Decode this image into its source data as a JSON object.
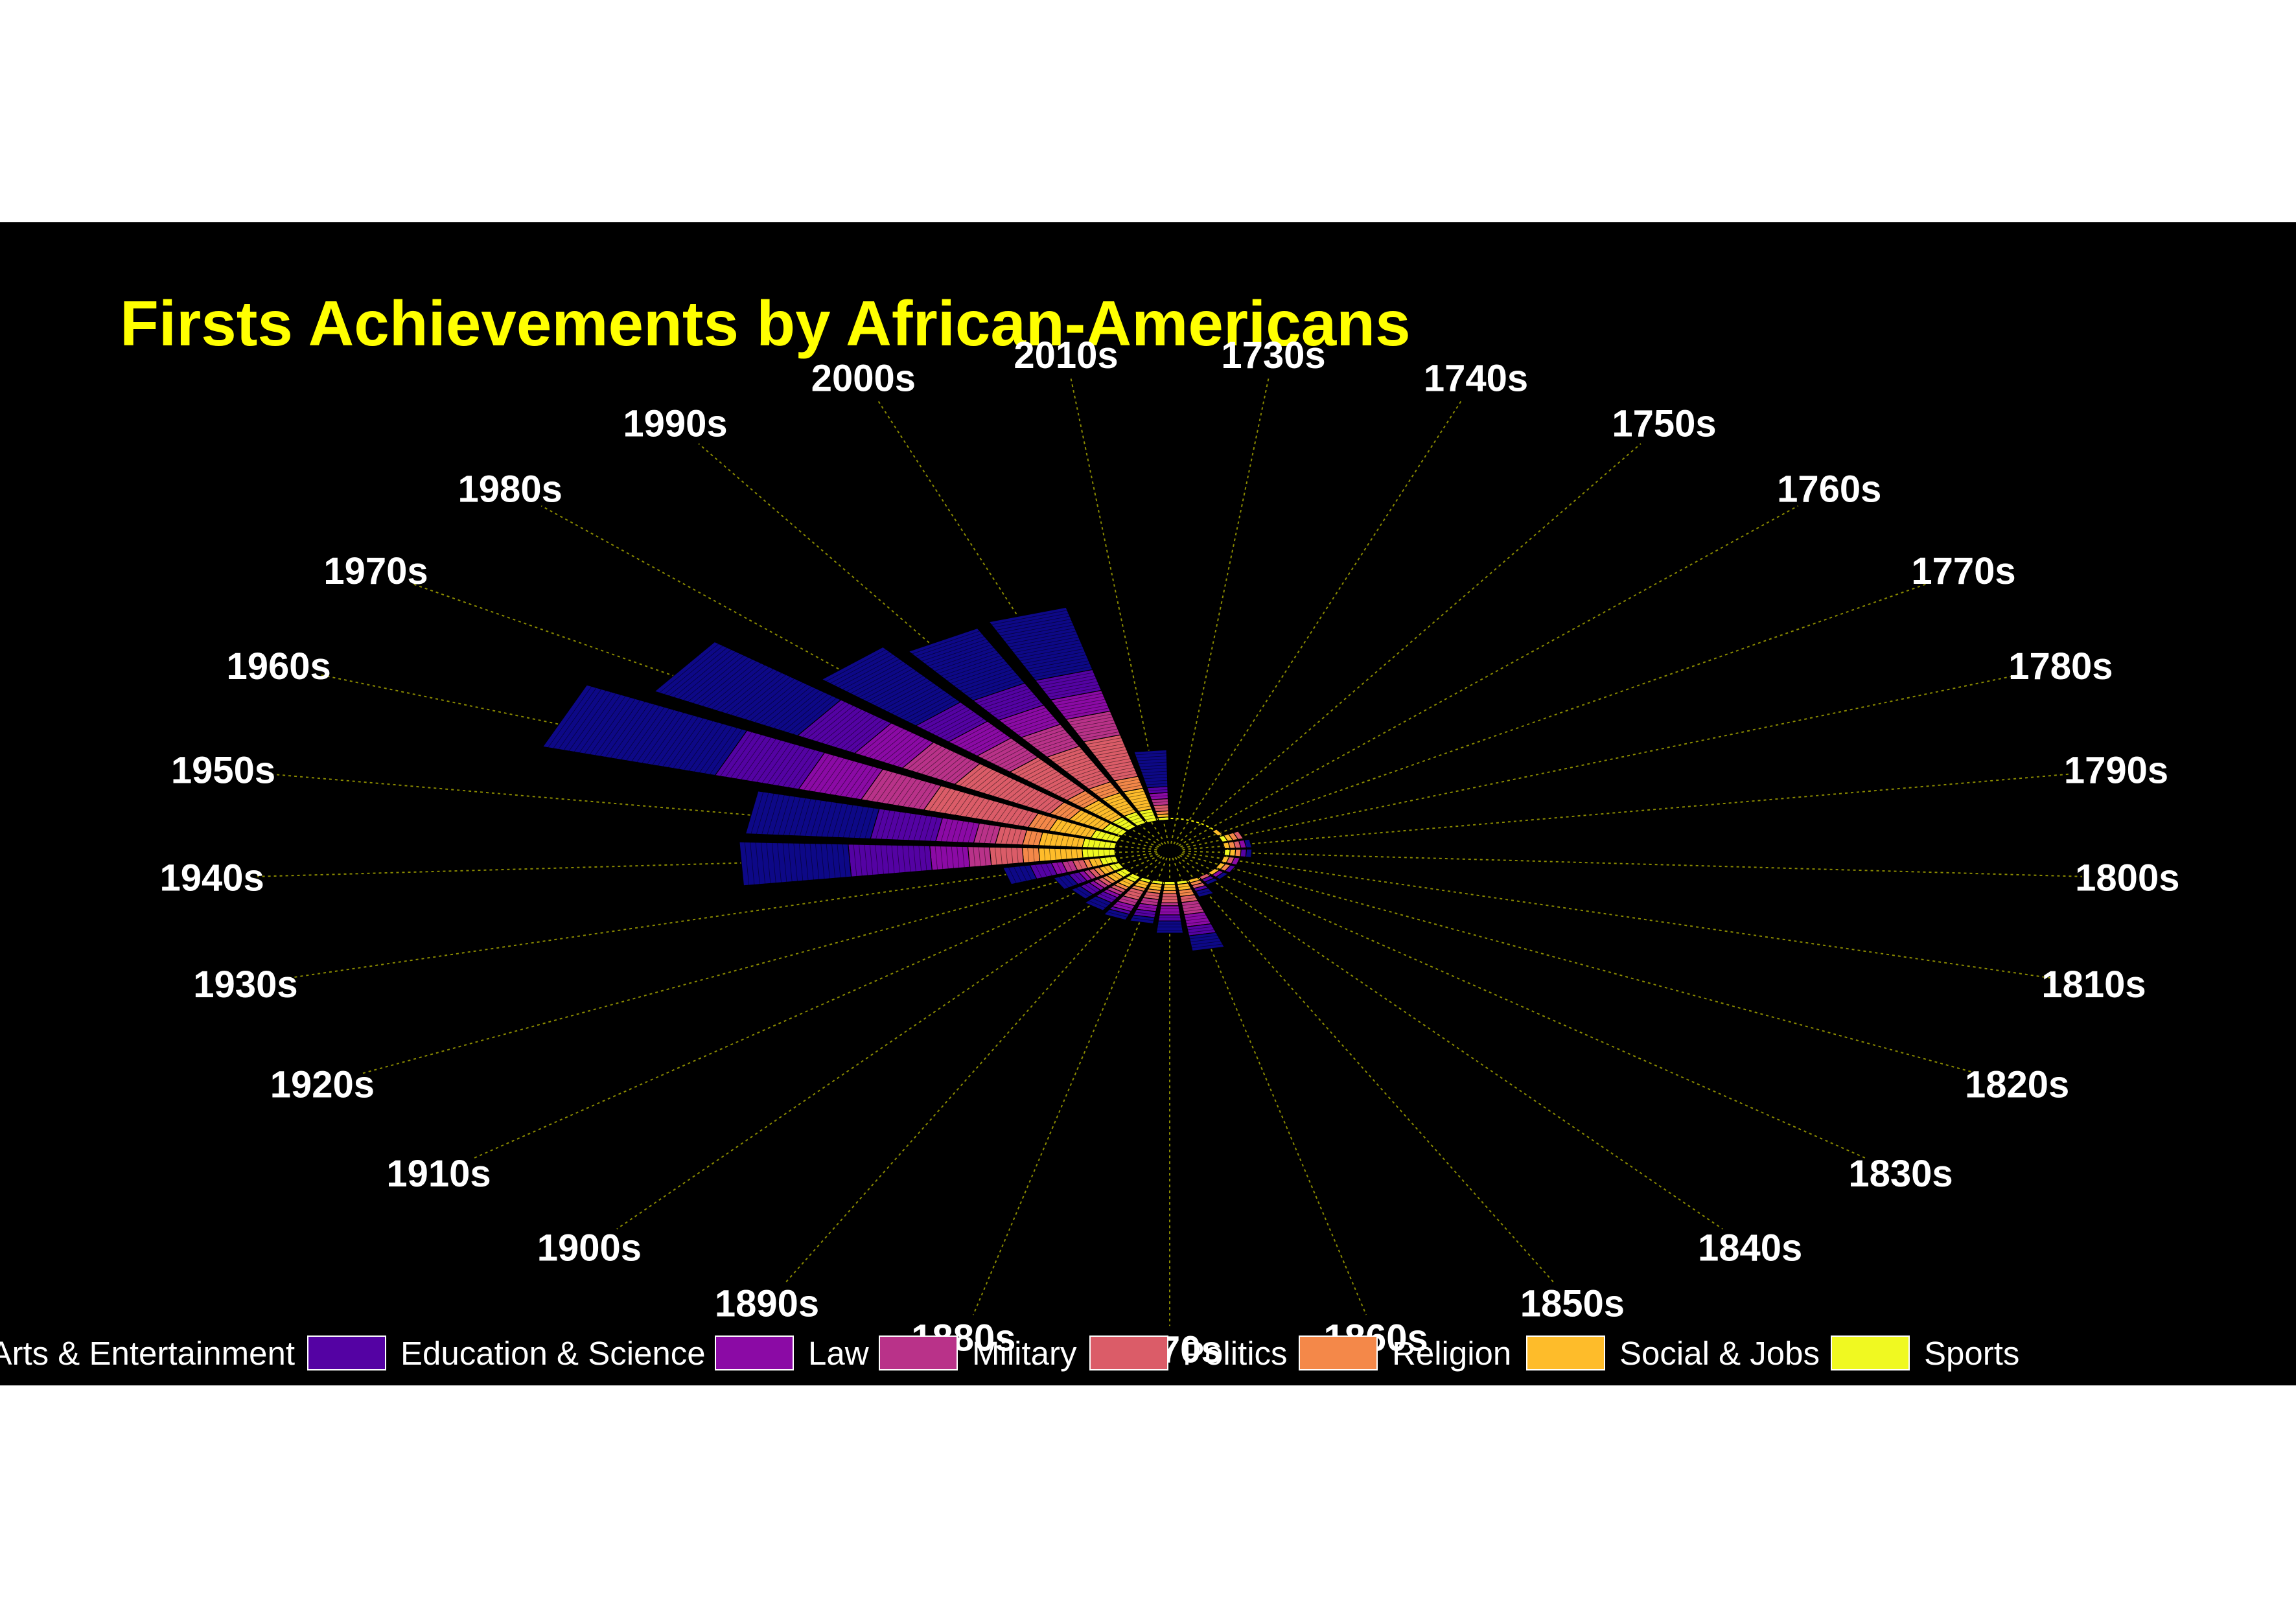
{
  "chart_data": {
    "type": "bar",
    "coord": "polar",
    "title": "Firsts Achievements by African-Americans",
    "categories": [
      "1730s",
      "1740s",
      "1750s",
      "1760s",
      "1770s",
      "1780s",
      "1790s",
      "1800s",
      "1810s",
      "1820s",
      "1830s",
      "1840s",
      "1850s",
      "1860s",
      "1870s",
      "1880s",
      "1890s",
      "1900s",
      "1910s",
      "1920s",
      "1930s",
      "1940s",
      "1950s",
      "1960s",
      "1970s",
      "1980s",
      "1990s",
      "2000s",
      "2010s"
    ],
    "series": [
      {
        "name": "Arts & Entertainment",
        "color": "#0d0887",
        "values": [
          0,
          0,
          0,
          0,
          0,
          0,
          1,
          1,
          0,
          0,
          1,
          1,
          2,
          5,
          4,
          2,
          2,
          3,
          2,
          3,
          5,
          20,
          23,
          33,
          30,
          23,
          20,
          21,
          12
        ]
      },
      {
        "name": "Education & Science",
        "color": "#5402a3",
        "values": [
          0,
          0,
          0,
          0,
          0,
          0,
          0,
          1,
          0,
          1,
          0,
          1,
          1,
          3,
          2,
          2,
          1,
          2,
          2,
          2,
          4,
          15,
          12,
          16,
          12,
          8,
          8,
          7,
          2
        ]
      },
      {
        "name": "Law",
        "color": "#8b0aa5",
        "values": [
          0,
          0,
          0,
          0,
          0,
          0,
          1,
          0,
          1,
          0,
          1,
          0,
          0,
          4,
          3,
          2,
          2,
          1,
          1,
          1,
          2,
          7,
          7,
          12,
          10,
          7,
          7,
          7,
          2
        ]
      },
      {
        "name": "Military",
        "color": "#b93289",
        "values": [
          0,
          0,
          0,
          0,
          0,
          0,
          0,
          0,
          0,
          0,
          0,
          0,
          0,
          4,
          1,
          2,
          2,
          1,
          1,
          1,
          2,
          4,
          4,
          12,
          11,
          8,
          8,
          8,
          2
        ]
      },
      {
        "name": "Politics",
        "color": "#db5c68",
        "values": [
          0,
          0,
          0,
          0,
          0,
          1,
          1,
          0,
          1,
          0,
          0,
          1,
          1,
          2,
          3,
          2,
          3,
          1,
          1,
          1,
          2,
          6,
          5,
          20,
          20,
          14,
          13,
          14,
          2
        ]
      },
      {
        "name": "Religion",
        "color": "#f48849",
        "values": [
          0,
          0,
          0,
          0,
          0,
          1,
          1,
          1,
          0,
          1,
          0,
          0,
          1,
          2,
          1,
          1,
          1,
          1,
          1,
          1,
          1,
          3,
          3,
          4,
          4,
          4,
          4,
          4,
          1
        ]
      },
      {
        "name": "Social & Jobs",
        "color": "#febc2a",
        "values": [
          0,
          0,
          0,
          0,
          1,
          1,
          1,
          1,
          1,
          1,
          1,
          0,
          1,
          2,
          2,
          2,
          2,
          2,
          2,
          2,
          2,
          8,
          8,
          8,
          7,
          7,
          7,
          7,
          1
        ]
      },
      {
        "name": "Sports",
        "color": "#f0f921",
        "values": [
          0,
          0,
          0,
          0,
          0,
          1,
          0,
          1,
          0,
          0,
          0,
          0,
          0,
          1,
          1,
          1,
          1,
          2,
          2,
          2,
          3,
          6,
          6,
          5,
          4,
          4,
          4,
          4,
          1
        ]
      }
    ],
    "legend_position": "bottom",
    "grid": "dotted radial lines",
    "colors": {
      "background": "#000000",
      "title": "#ffff00",
      "labels": "#ffffff",
      "gridline": "#8a8a00",
      "bar_edge": "#000000"
    }
  }
}
